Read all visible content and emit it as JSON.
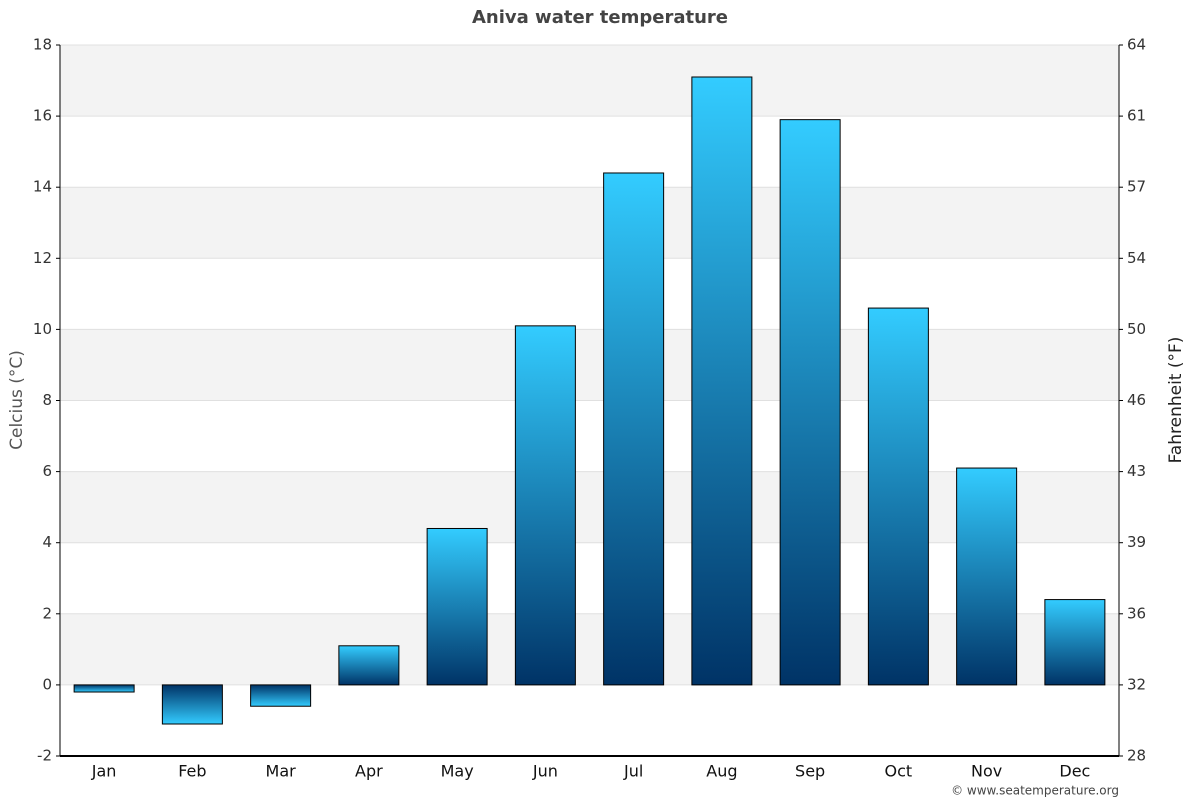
{
  "chart_data": {
    "type": "bar",
    "title": "Aniva water temperature",
    "y_label": "Celcius (°C)",
    "y2_label": "Fahrenheit (°F)",
    "source": "© www.seatemperature.org",
    "categories": [
      "Jan",
      "Feb",
      "Mar",
      "Apr",
      "May",
      "Jun",
      "Jul",
      "Aug",
      "Sep",
      "Oct",
      "Nov",
      "Dec"
    ],
    "values": [
      -0.2,
      -1.1,
      -0.6,
      1.1,
      4.4,
      10.1,
      14.4,
      17.1,
      15.9,
      10.6,
      6.1,
      2.4
    ],
    "color": "#33ccff",
    "color_dark": "#003366",
    "ylim": [
      -2,
      18
    ],
    "yticks": [
      -2,
      0,
      2,
      4,
      6,
      8,
      10,
      12,
      14,
      16,
      18
    ],
    "y2lim": [
      28.4,
      64.4
    ],
    "y2ticks": [
      {
        "value": 28.4,
        "label": "28"
      },
      {
        "value": 32,
        "label": "32"
      },
      {
        "value": 35.6,
        "label": "36"
      },
      {
        "value": 39.2,
        "label": "39"
      },
      {
        "value": 42.8,
        "label": "43"
      },
      {
        "value": 46.4,
        "label": "46"
      },
      {
        "value": 50,
        "label": "50"
      },
      {
        "value": 53.6,
        "label": "54"
      },
      {
        "value": 57.2,
        "label": "57"
      },
      {
        "value": 60.8,
        "label": "61"
      },
      {
        "value": 64.4,
        "label": "64"
      }
    ],
    "grid": true
  }
}
